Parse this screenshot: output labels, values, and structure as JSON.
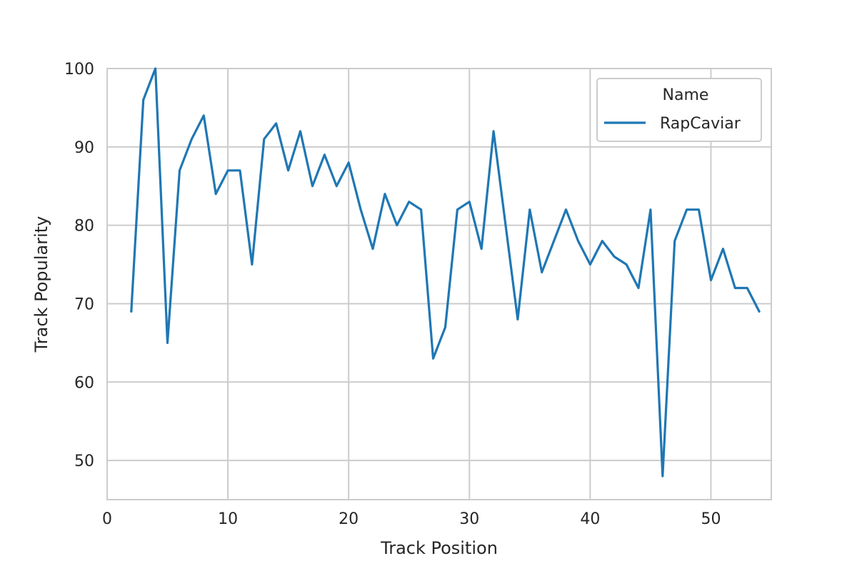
{
  "chart_data": {
    "type": "line",
    "title": "",
    "xlabel": "Track Position",
    "ylabel": "Track Popularity",
    "xlim": [
      0,
      55
    ],
    "ylim": [
      45,
      100
    ],
    "xticks": [
      0,
      10,
      20,
      30,
      40,
      50
    ],
    "yticks": [
      50,
      60,
      70,
      80,
      90,
      100
    ],
    "grid": true,
    "legend": {
      "title": "Name",
      "placement": "top-right"
    },
    "colors": {
      "line": "#1f77b4",
      "grid": "#cccccc",
      "spine": "#cccccc",
      "text": "#262626"
    },
    "series": [
      {
        "name": "RapCaviar",
        "x": [
          2,
          3,
          4,
          5,
          6,
          7,
          8,
          9,
          10,
          11,
          12,
          13,
          14,
          15,
          16,
          17,
          18,
          19,
          20,
          21,
          22,
          23,
          24,
          25,
          26,
          27,
          28,
          29,
          30,
          31,
          32,
          33,
          34,
          35,
          36,
          37,
          38,
          39,
          40,
          41,
          42,
          43,
          44,
          45,
          46,
          47,
          48,
          49,
          50,
          51,
          52,
          53,
          54
        ],
        "y": [
          69,
          96,
          100,
          65,
          87,
          91,
          94,
          84,
          87,
          87,
          75,
          91,
          93,
          87,
          92,
          85,
          89,
          85,
          88,
          82,
          77,
          84,
          80,
          83,
          82,
          63,
          67,
          82,
          83,
          77,
          92,
          80,
          68,
          82,
          74,
          78,
          82,
          78,
          75,
          78,
          76,
          75,
          72,
          82,
          48,
          78,
          82,
          82,
          73,
          77,
          72,
          72,
          69
        ]
      }
    ]
  }
}
